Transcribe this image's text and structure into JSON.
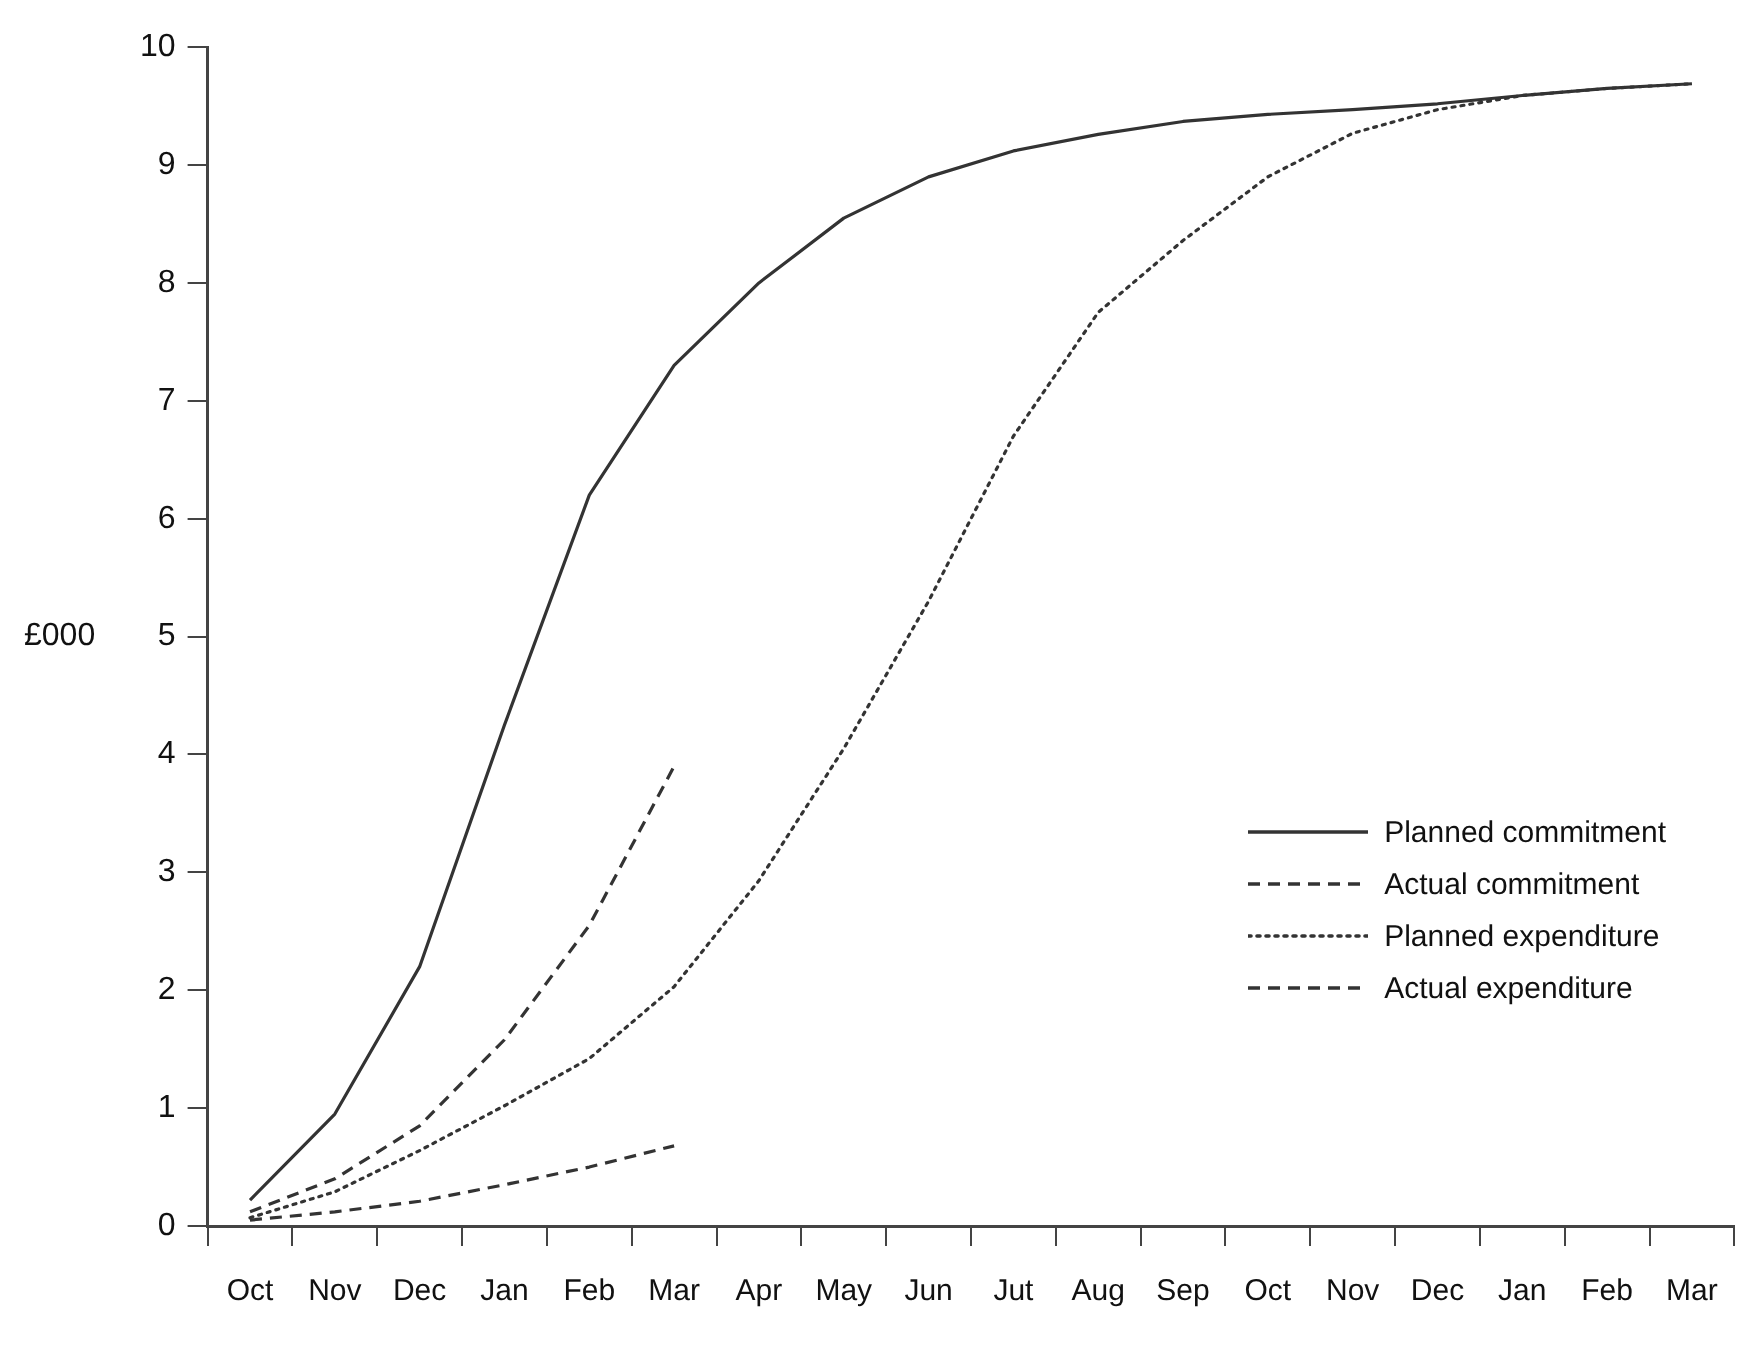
{
  "chart_data": {
    "type": "line",
    "ylabel": "£000",
    "categories": [
      "Oct",
      "Nov",
      "Dec",
      "Jan",
      "Feb",
      "Mar",
      "Apr",
      "May",
      "Jun",
      "Jut",
      "Aug",
      "Sep",
      "Oct",
      "Nov",
      "Dec",
      "Jan",
      "Feb",
      "Mar"
    ],
    "series": [
      {
        "name": "Planned commitment",
        "color": "#333333",
        "line_style": "solid",
        "values": [
          0.22,
          0.95,
          2.2,
          4.25,
          6.2,
          7.3,
          8.0,
          8.55,
          8.9,
          9.12,
          9.26,
          9.37,
          9.43,
          9.47,
          9.52,
          9.59,
          9.65,
          9.69
        ]
      },
      {
        "name": "Actual commitment",
        "color": "#333333",
        "line_style": "dashed",
        "values": [
          0.12,
          0.4,
          0.85,
          1.58,
          2.55,
          3.9,
          null,
          null,
          null,
          null,
          null,
          null,
          null,
          null,
          null,
          null,
          null,
          null
        ]
      },
      {
        "name": "Planned expenditure",
        "color": "#333333",
        "line_style": "dotted",
        "values": [
          0.07,
          0.29,
          0.64,
          1.02,
          1.42,
          2.03,
          2.93,
          4.05,
          5.3,
          6.7,
          7.75,
          8.36,
          8.9,
          9.27,
          9.47,
          9.59,
          9.65,
          9.69
        ]
      },
      {
        "name": "Actual expenditure",
        "color": "#333333",
        "line_style": "dashed",
        "values": [
          0.05,
          0.12,
          0.21,
          0.35,
          0.5,
          0.68,
          null,
          null,
          null,
          null,
          null,
          null,
          null,
          null,
          null,
          null,
          null,
          null
        ]
      }
    ],
    "ylim": [
      0,
      10
    ],
    "yticks": [
      0,
      1,
      2,
      3,
      4,
      5,
      6,
      7,
      8,
      9,
      10
    ],
    "grid": false,
    "legend": "right",
    "marker": "none"
  }
}
